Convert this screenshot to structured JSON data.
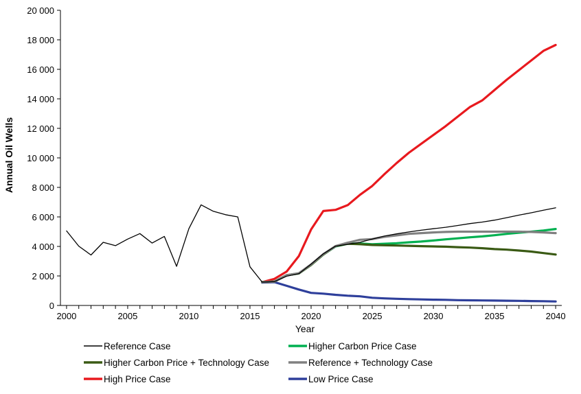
{
  "chart_data": {
    "type": "line",
    "xlabel": "Year",
    "ylabel": "Annual Oil Wells",
    "xlim": [
      1999.5,
      2040.5
    ],
    "ylim": [
      0,
      20000
    ],
    "x_ticks": [
      2000,
      2005,
      2010,
      2015,
      2020,
      2025,
      2030,
      2035,
      2040
    ],
    "x_tick_labels": [
      "2000",
      "2005",
      "2010",
      "2015",
      "2020",
      "2025",
      "2030",
      "2035",
      "2040"
    ],
    "y_ticks": [
      0,
      2000,
      4000,
      6000,
      8000,
      10000,
      12000,
      14000,
      16000,
      18000,
      20000
    ],
    "y_tick_labels": [
      "0",
      "2 000",
      "4 000",
      "6 000",
      "8 000",
      "10 000",
      "12 000",
      "14 000",
      "16 000",
      "18 000",
      "20 000"
    ],
    "grid": false,
    "series": [
      {
        "name": "Reference Case",
        "color": "#000000",
        "x": [
          2000,
          2001,
          2002,
          2003,
          2004,
          2005,
          2006,
          2007,
          2008,
          2009,
          2010,
          2011,
          2012,
          2013,
          2014,
          2015,
          2016,
          2017,
          2018,
          2019,
          2020,
          2021,
          2022,
          2023,
          2024,
          2025,
          2026,
          2027,
          2028,
          2029,
          2030,
          2031,
          2032,
          2033,
          2034,
          2035,
          2036,
          2037,
          2038,
          2039,
          2040
        ],
        "values": [
          5050,
          4020,
          3420,
          4280,
          4050,
          4500,
          4870,
          4230,
          4680,
          2650,
          5200,
          6820,
          6380,
          6150,
          6000,
          2620,
          1580,
          1620,
          1980,
          2150,
          2800,
          3500,
          4020,
          4150,
          4280,
          4500,
          4700,
          4850,
          4980,
          5100,
          5200,
          5300,
          5420,
          5550,
          5650,
          5780,
          5950,
          6120,
          6280,
          6450,
          6620
        ]
      },
      {
        "name": "Higher Carbon Price Case",
        "color": "#00b050",
        "x": [
          2016,
          2017,
          2018,
          2019,
          2020,
          2021,
          2022,
          2023,
          2024,
          2025,
          2026,
          2027,
          2028,
          2029,
          2030,
          2031,
          2032,
          2033,
          2034,
          2035,
          2036,
          2037,
          2038,
          2039,
          2040
        ],
        "values": [
          1580,
          1620,
          2050,
          2170,
          2750,
          3450,
          4000,
          4180,
          4200,
          4150,
          4180,
          4220,
          4280,
          4330,
          4400,
          4480,
          4550,
          4620,
          4680,
          4760,
          4850,
          4930,
          5000,
          5080,
          5180
        ]
      },
      {
        "name": "Higher Carbon Price + Technology Case",
        "color": "#3a5a14",
        "x": [
          2016,
          2017,
          2018,
          2019,
          2020,
          2021,
          2022,
          2023,
          2024,
          2025,
          2026,
          2027,
          2028,
          2029,
          2030,
          2031,
          2032,
          2033,
          2034,
          2035,
          2036,
          2037,
          2038,
          2039,
          2040
        ],
        "values": [
          1580,
          1620,
          2050,
          2170,
          2750,
          3450,
          4020,
          4180,
          4150,
          4100,
          4080,
          4060,
          4040,
          4020,
          4000,
          3980,
          3950,
          3920,
          3880,
          3820,
          3780,
          3720,
          3650,
          3550,
          3450
        ]
      },
      {
        "name": "Reference + Technology Case",
        "color": "#808080",
        "x": [
          2016,
          2017,
          2018,
          2019,
          2020,
          2021,
          2022,
          2023,
          2024,
          2025,
          2026,
          2027,
          2028,
          2029,
          2030,
          2031,
          2032,
          2033,
          2034,
          2035,
          2036,
          2037,
          2038,
          2039,
          2040
        ],
        "values": [
          1580,
          1620,
          2050,
          2180,
          2780,
          3480,
          4020,
          4250,
          4450,
          4500,
          4650,
          4750,
          4850,
          4900,
          4950,
          4980,
          5000,
          5000,
          5000,
          5000,
          5000,
          5000,
          4980,
          4950,
          4900
        ]
      },
      {
        "name": "High Price Case",
        "color": "#e8191e",
        "x": [
          2016,
          2017,
          2018,
          2019,
          2020,
          2021,
          2022,
          2023,
          2024,
          2025,
          2026,
          2027,
          2028,
          2029,
          2030,
          2031,
          2032,
          2033,
          2034,
          2035,
          2036,
          2037,
          2038,
          2039,
          2040
        ],
        "values": [
          1580,
          1800,
          2300,
          3350,
          5150,
          6400,
          6480,
          6800,
          7500,
          8100,
          8900,
          9650,
          10350,
          10950,
          11550,
          12150,
          12800,
          13450,
          13900,
          14600,
          15300,
          15950,
          16600,
          17250,
          17650
        ]
      },
      {
        "name": "Low Price Case",
        "color": "#2e3f9b",
        "x": [
          2016,
          2017,
          2018,
          2019,
          2020,
          2021,
          2022,
          2023,
          2024,
          2025,
          2026,
          2027,
          2028,
          2029,
          2030,
          2031,
          2032,
          2033,
          2034,
          2035,
          2036,
          2037,
          2038,
          2039,
          2040
        ],
        "values": [
          1550,
          1580,
          1330,
          1080,
          850,
          800,
          720,
          660,
          620,
          520,
          480,
          450,
          430,
          410,
          390,
          380,
          360,
          350,
          340,
          330,
          320,
          310,
          300,
          290,
          270
        ]
      }
    ],
    "legend": {
      "placement": "bottom",
      "order": [
        "Reference Case",
        "Higher Carbon Price Case",
        "Higher Carbon Price + Technology Case",
        "Reference + Technology Case",
        "High Price Case",
        "Low Price Case"
      ]
    }
  }
}
